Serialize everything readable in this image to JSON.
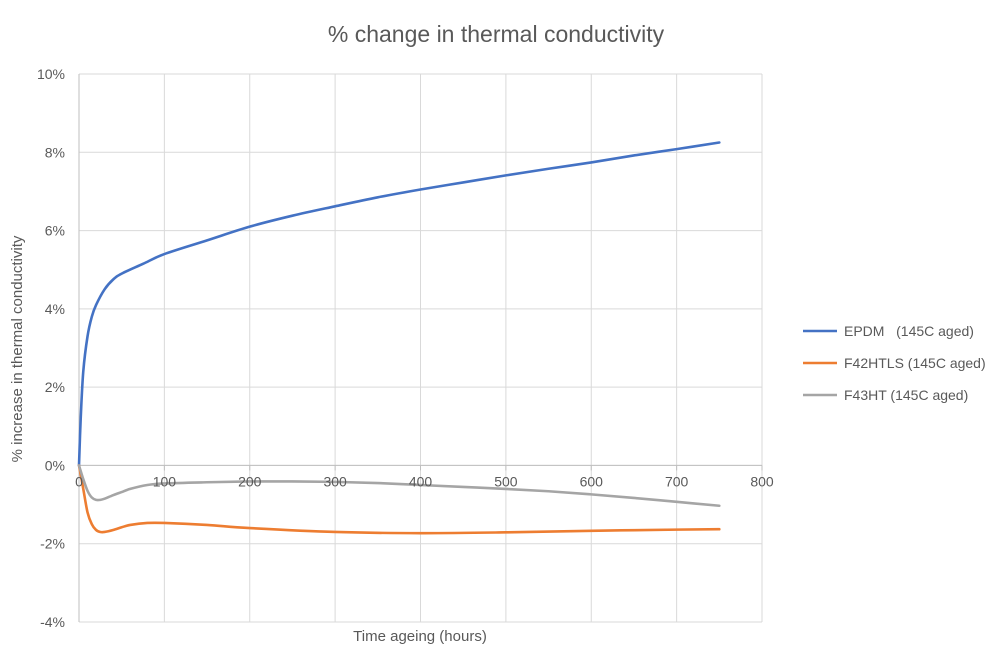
{
  "chart_data": {
    "type": "line",
    "title": "% change in thermal conductivity",
    "xlabel": "Time ageing (hours)",
    "ylabel": "% increase in thermal conductivity",
    "xlim": [
      0,
      800
    ],
    "ylim": [
      -4,
      10
    ],
    "xticks": [
      "0",
      "100",
      "200",
      "300",
      "400",
      "500",
      "600",
      "700",
      "800"
    ],
    "yticks": [
      "-4%",
      "-2%",
      "0%",
      "2%",
      "4%",
      "6%",
      "8%",
      "10%"
    ],
    "grid": true,
    "legend_position": "right",
    "series": [
      {
        "name": "EPDM   (145C aged)",
        "color": "#4472C4",
        "x": [
          0,
          2,
          5,
          10,
          15,
          20,
          30,
          40,
          50,
          75,
          100,
          150,
          200,
          250,
          300,
          350,
          400,
          450,
          500,
          550,
          600,
          650,
          700,
          750
        ],
        "y": [
          0,
          1.2,
          2.4,
          3.3,
          3.8,
          4.1,
          4.5,
          4.75,
          4.9,
          5.15,
          5.4,
          5.75,
          6.1,
          6.38,
          6.62,
          6.85,
          7.05,
          7.23,
          7.41,
          7.58,
          7.74,
          7.92,
          8.08,
          8.25
        ]
      },
      {
        "name": "F42HTLS (145C aged)",
        "color": "#ED7D31",
        "x": [
          0,
          5,
          10,
          15,
          20,
          25,
          30,
          40,
          50,
          60,
          80,
          100,
          150,
          200,
          300,
          400,
          500,
          600,
          700,
          750
        ],
        "y": [
          0,
          -0.6,
          -1.2,
          -1.5,
          -1.65,
          -1.7,
          -1.7,
          -1.65,
          -1.58,
          -1.52,
          -1.47,
          -1.47,
          -1.52,
          -1.6,
          -1.7,
          -1.73,
          -1.71,
          -1.67,
          -1.64,
          -1.63
        ]
      },
      {
        "name": "F43HT (145C aged)",
        "color": "#A5A5A5",
        "x": [
          0,
          5,
          10,
          15,
          20,
          25,
          30,
          40,
          50,
          60,
          80,
          100,
          150,
          200,
          250,
          300,
          350,
          400,
          450,
          500,
          550,
          600,
          650,
          700,
          750
        ],
        "y": [
          0,
          -0.35,
          -0.65,
          -0.82,
          -0.88,
          -0.88,
          -0.85,
          -0.76,
          -0.68,
          -0.6,
          -0.5,
          -0.46,
          -0.43,
          -0.41,
          -0.41,
          -0.42,
          -0.45,
          -0.5,
          -0.55,
          -0.6,
          -0.66,
          -0.74,
          -0.83,
          -0.93,
          -1.03
        ]
      }
    ]
  }
}
